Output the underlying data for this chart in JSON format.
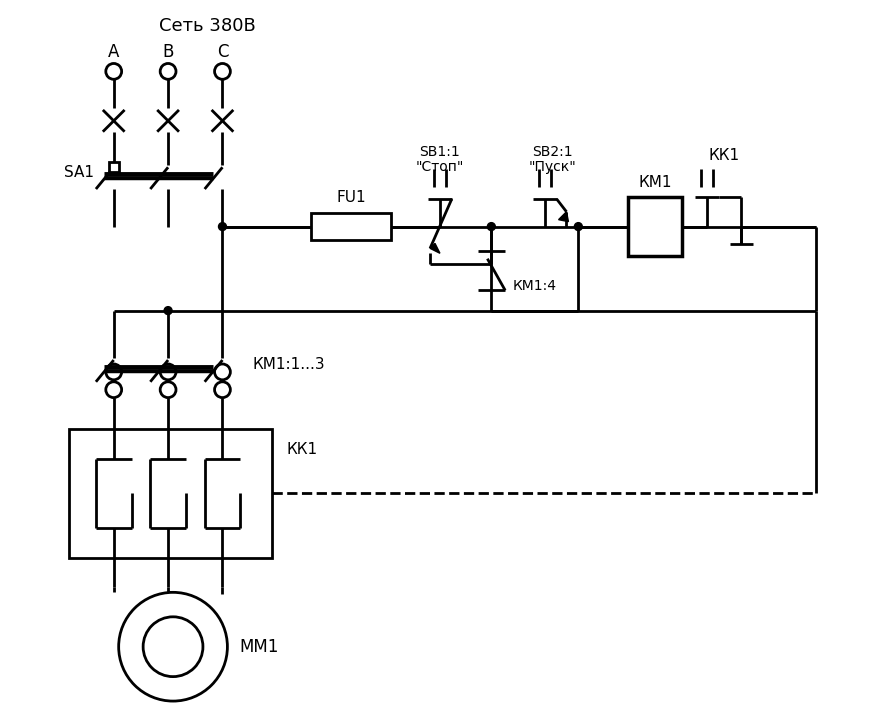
{
  "bg_color": "#ffffff",
  "line_color": "#000000",
  "labels": {
    "network": "Сеть 380В",
    "phaseA": "А",
    "phaseB": "В",
    "phaseC": "С",
    "sa1": "SA1",
    "fu1": "FU1",
    "sb1_label": "SB1:1",
    "sb1_name": "\"Стоп\"",
    "sb2_label": "SB2:1",
    "sb2_name": "\"Пуск\"",
    "km1_label": "КМ1",
    "kk1_label": "КК1",
    "km14_label": "КМ1:4",
    "km1_13": "КМ1:1...3",
    "kk1_lower": "КК1",
    "mm1": "ММ1"
  },
  "figsize": [
    8.69,
    7.27
  ],
  "dpi": 100
}
